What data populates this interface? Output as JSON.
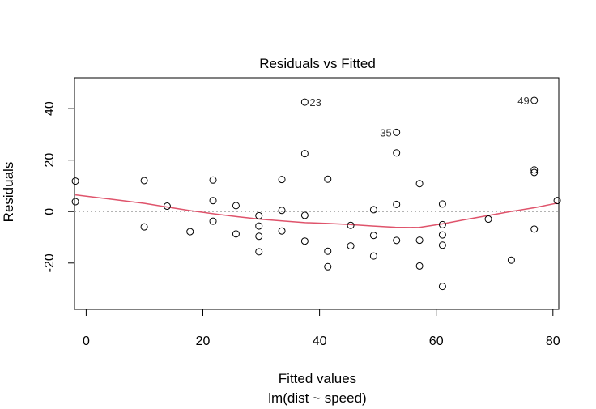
{
  "chart_data": {
    "type": "scatter",
    "title": "Residuals vs Fitted",
    "xlabel": "Fitted values",
    "xlabel_sub": "lm(dist ~ speed)",
    "ylabel": "Residuals",
    "xlim": [
      -2,
      81
    ],
    "ylim": [
      -38,
      52
    ],
    "xticks": [
      0,
      20,
      40,
      60,
      80
    ],
    "yticks": [
      -20,
      0,
      20,
      40
    ],
    "grid": false,
    "reference_line": {
      "y": 0,
      "style": "dotted",
      "color": "#9a9a9a"
    },
    "series": [
      {
        "type": "scatter",
        "marker": "open-circle",
        "color": "#000000",
        "points": [
          [
            -1.85,
            3.85
          ],
          [
            -1.85,
            11.85
          ],
          [
            9.95,
            -5.95
          ],
          [
            9.95,
            12.05
          ],
          [
            13.88,
            2.12
          ],
          [
            17.81,
            -7.81
          ],
          [
            21.74,
            -3.74
          ],
          [
            21.74,
            4.26
          ],
          [
            21.74,
            12.26
          ],
          [
            25.68,
            -8.68
          ],
          [
            25.68,
            2.32
          ],
          [
            29.61,
            -15.61
          ],
          [
            29.61,
            -9.61
          ],
          [
            29.61,
            -5.61
          ],
          [
            29.61,
            -1.61
          ],
          [
            33.54,
            -7.54
          ],
          [
            33.54,
            0.46
          ],
          [
            33.54,
            12.46
          ],
          [
            37.47,
            -11.47
          ],
          [
            37.47,
            -1.47
          ],
          [
            37.47,
            22.53
          ],
          [
            37.47,
            42.53
          ],
          [
            41.41,
            -21.41
          ],
          [
            41.41,
            -15.41
          ],
          [
            41.41,
            12.59
          ],
          [
            45.34,
            -13.34
          ],
          [
            45.34,
            -5.34
          ],
          [
            49.27,
            -17.27
          ],
          [
            49.27,
            -9.27
          ],
          [
            49.27,
            0.73
          ],
          [
            53.2,
            -11.2
          ],
          [
            53.2,
            2.8
          ],
          [
            53.2,
            22.8
          ],
          [
            53.2,
            30.8
          ],
          [
            57.14,
            -21.14
          ],
          [
            57.14,
            -11.14
          ],
          [
            57.14,
            10.86
          ],
          [
            61.07,
            -29.07
          ],
          [
            61.07,
            -13.07
          ],
          [
            61.07,
            -9.07
          ],
          [
            61.07,
            -5.07
          ],
          [
            61.07,
            2.93
          ],
          [
            68.93,
            -2.93
          ],
          [
            72.87,
            -18.87
          ],
          [
            76.8,
            -6.8
          ],
          [
            76.8,
            15.2
          ],
          [
            76.8,
            16.2
          ],
          [
            76.8,
            43.2
          ],
          [
            80.73,
            4.27
          ]
        ]
      },
      {
        "type": "line",
        "color": "#df536b",
        "points": [
          [
            -1.85,
            6.5
          ],
          [
            5,
            4.6
          ],
          [
            10,
            3.2
          ],
          [
            14,
            1.7
          ],
          [
            18,
            0.3
          ],
          [
            22,
            -0.9
          ],
          [
            26,
            -2.0
          ],
          [
            30,
            -3.0
          ],
          [
            34,
            -3.7
          ],
          [
            37.5,
            -4.3
          ],
          [
            41.4,
            -4.6
          ],
          [
            45,
            -5.0
          ],
          [
            49,
            -5.6
          ],
          [
            53,
            -6.1
          ],
          [
            57,
            -6.2
          ],
          [
            61,
            -4.8
          ],
          [
            65,
            -3.1
          ],
          [
            69,
            -1.5
          ],
          [
            73,
            0.1
          ],
          [
            77,
            1.6
          ],
          [
            80.73,
            3.3
          ]
        ]
      }
    ],
    "annotations": [
      {
        "text": "23",
        "x": 37.47,
        "y": 42.53,
        "side": "right"
      },
      {
        "text": "35",
        "x": 53.2,
        "y": 30.8,
        "side": "left"
      },
      {
        "text": "49",
        "x": 76.8,
        "y": 43.2,
        "side": "left"
      }
    ]
  }
}
